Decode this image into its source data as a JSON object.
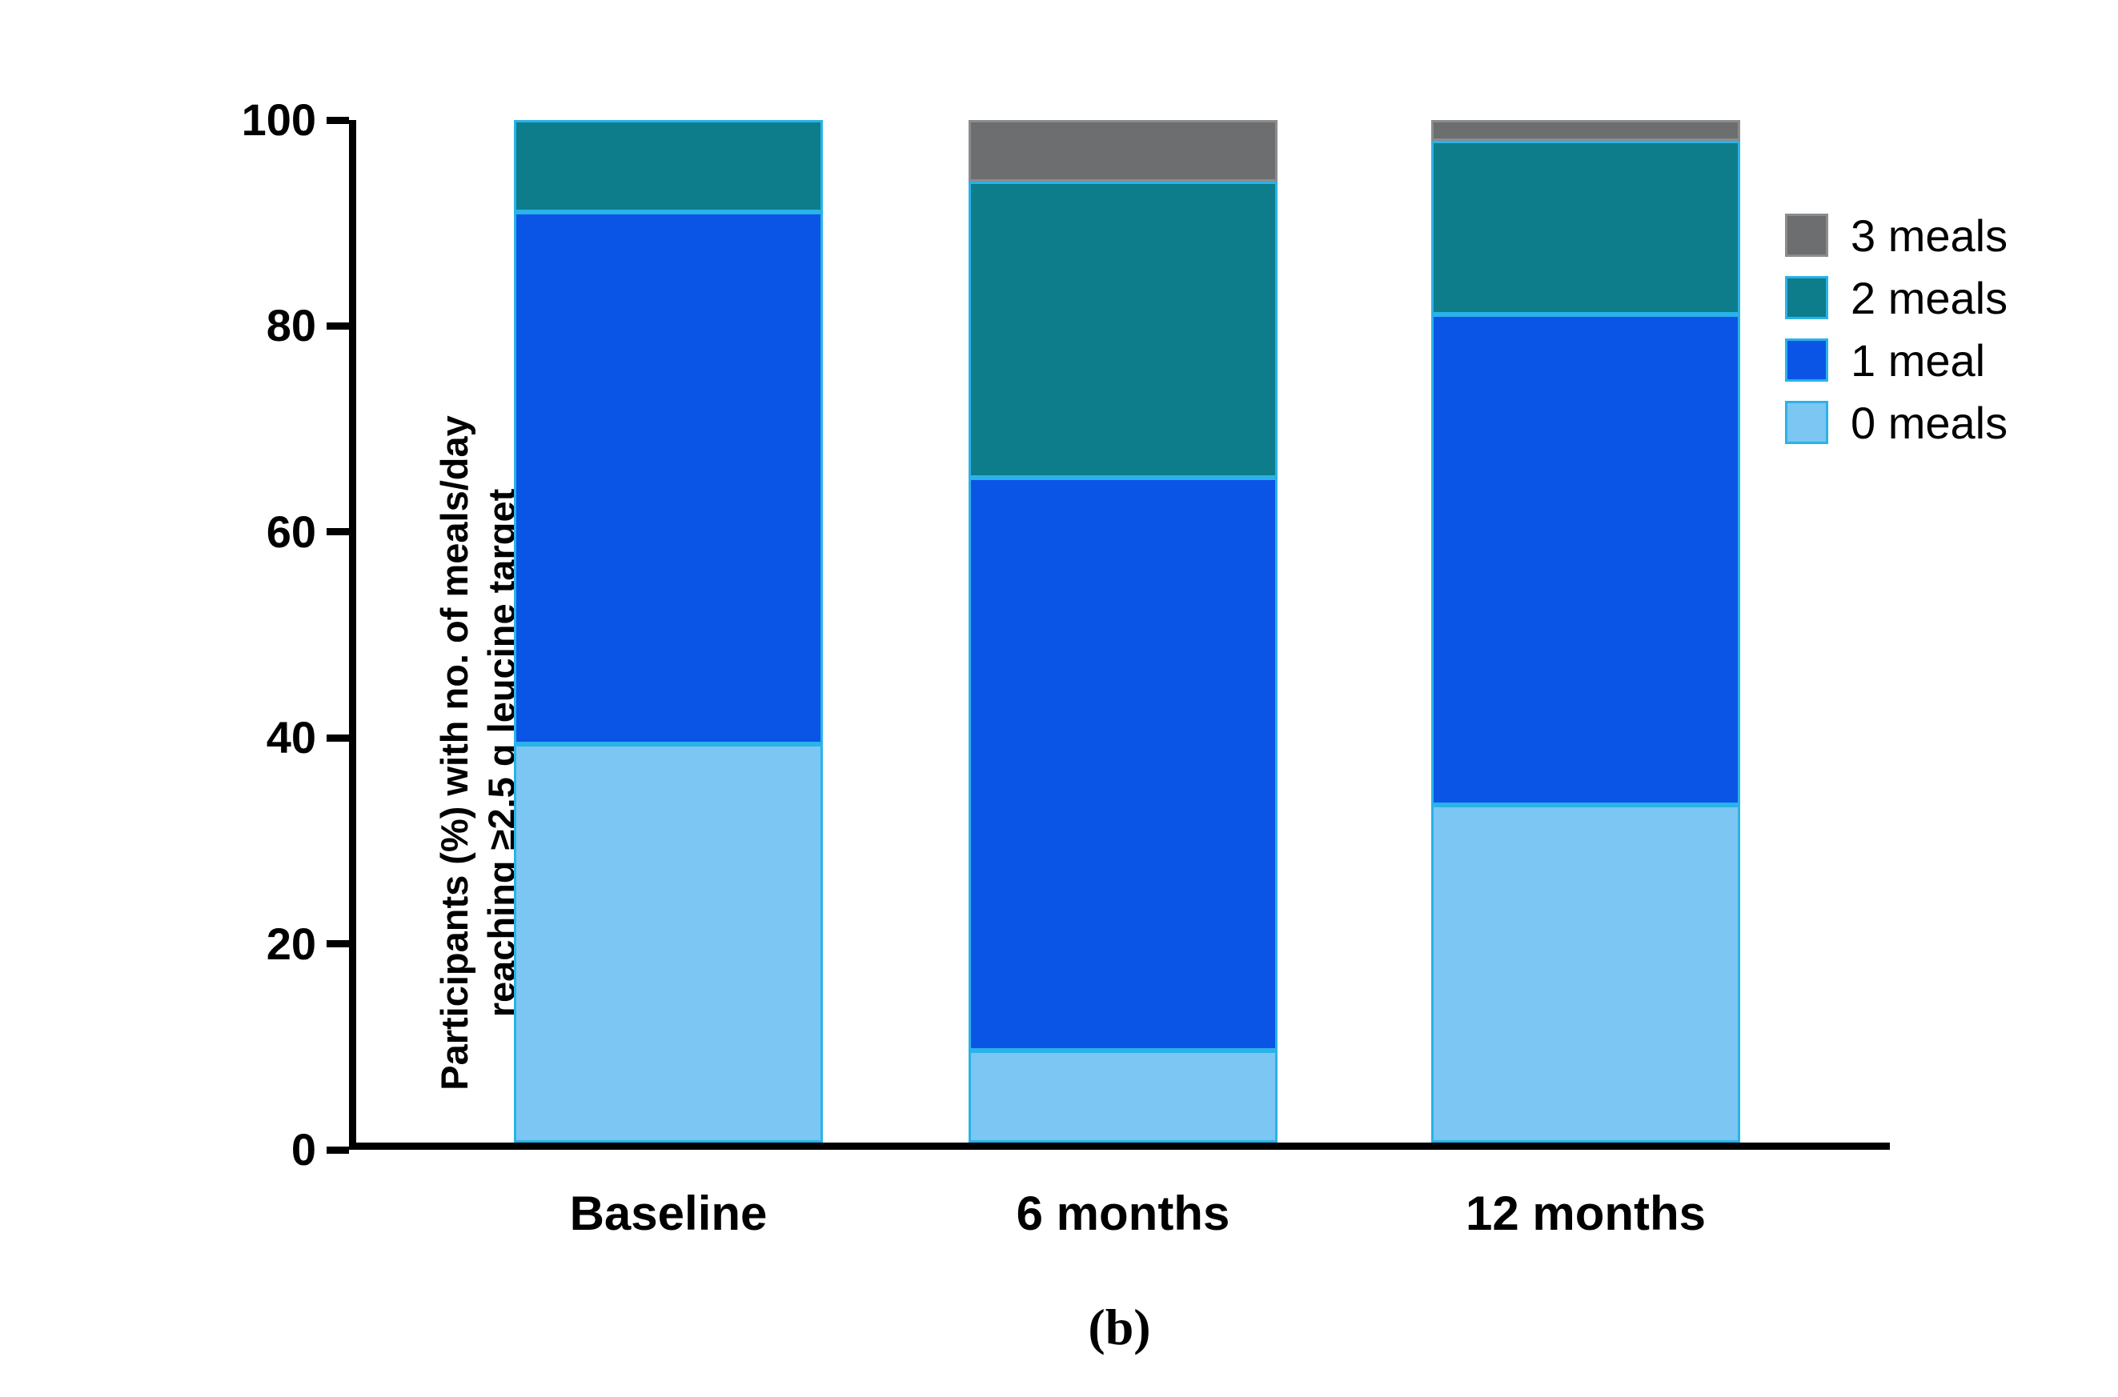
{
  "caption": "(b)",
  "chart_data": {
    "type": "bar",
    "stacked": true,
    "title": "",
    "xlabel": "",
    "ylabel": "Participants (%) with no. of meals/day\nreaching ≥2.5 g leucine target",
    "ylim": [
      0,
      100
    ],
    "yticks": [
      0,
      20,
      40,
      60,
      80,
      100
    ],
    "grid": false,
    "categories": [
      "Baseline",
      "6 months",
      "12 months"
    ],
    "series": [
      {
        "name": "0 meals",
        "color": "#7cc6f3",
        "border_color": "#2bb2e8",
        "values": [
          39,
          9,
          33
        ]
      },
      {
        "name": "1 meal",
        "color": "#0a55e6",
        "border_color": "#2bb2e8",
        "values": [
          52,
          56,
          48
        ]
      },
      {
        "name": "2 meals",
        "color": "#0e7d8b",
        "border_color": "#2bb2e8",
        "values": [
          9,
          29,
          17
        ]
      },
      {
        "name": "3 meals",
        "color": "#6d6e70",
        "border_color": "#8a8c8e",
        "values": [
          0,
          6,
          2
        ]
      }
    ],
    "legend": {
      "position": "right",
      "order": [
        "3 meals",
        "2 meals",
        "1 meal",
        "0 meals"
      ]
    }
  }
}
